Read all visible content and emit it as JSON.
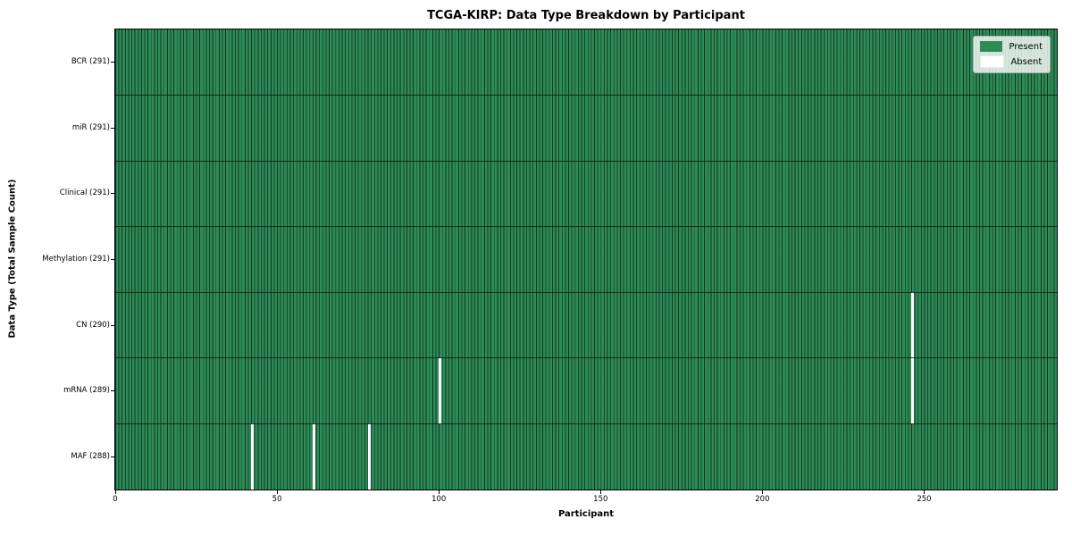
{
  "chart_data": {
    "type": "heatmap",
    "title": "TCGA-KIRP: Data Type Breakdown by Participant",
    "xlabel": "Participant",
    "ylabel": "Data Type (Total Sample Count)",
    "n_participants": 291,
    "x_ticks": [
      0,
      50,
      100,
      150,
      200,
      250
    ],
    "rows": [
      {
        "label": "BCR (291)",
        "data_type": "BCR",
        "total": 291,
        "absent_participants": []
      },
      {
        "label": "miR (291)",
        "data_type": "miR",
        "total": 291,
        "absent_participants": []
      },
      {
        "label": "Clinical (291)",
        "data_type": "Clinical",
        "total": 291,
        "absent_participants": []
      },
      {
        "label": "Methylation (291)",
        "data_type": "Methylation",
        "total": 291,
        "absent_participants": []
      },
      {
        "label": "CN (290)",
        "data_type": "CN",
        "total": 290,
        "absent_participants": [
          246
        ]
      },
      {
        "label": "mRNA (289)",
        "data_type": "mRNA",
        "total": 289,
        "absent_participants": [
          100,
          246
        ]
      },
      {
        "label": "MAF (288)",
        "data_type": "MAF",
        "total": 288,
        "absent_participants": [
          42,
          61,
          78
        ]
      }
    ],
    "legend": [
      {
        "label": "Present",
        "color": "#2e8b57"
      },
      {
        "label": "Absent",
        "color": "#ffffff"
      }
    ],
    "colors": {
      "present": "#2e8b57",
      "absent": "#ffffff",
      "cell_edge": "#143f27",
      "row_divider": "#0a2014",
      "axis": "#000000",
      "legend_border": "#b3b3b3"
    },
    "layout_hints": {
      "legend_position": "upper right",
      "grid": "cell edges only",
      "xlim": [
        0,
        291
      ]
    }
  }
}
